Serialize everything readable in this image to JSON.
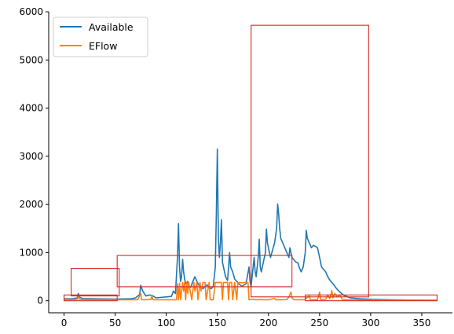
{
  "chart_data": {
    "type": "line",
    "title": "",
    "xlabel": "",
    "ylabel": "",
    "xlim": [
      -15,
      380
    ],
    "ylim": [
      -250,
      6000
    ],
    "x_ticks": [
      0,
      50,
      100,
      150,
      200,
      250,
      300,
      350
    ],
    "y_ticks": [
      0,
      1000,
      2000,
      3000,
      4000,
      5000,
      6000
    ],
    "grid": false,
    "legend": {
      "position": "top-left",
      "entries": [
        "Available",
        "EFlow"
      ]
    },
    "series": [
      {
        "name": "Available",
        "color": "#1f77b4",
        "points": [
          [
            0,
            40
          ],
          [
            8,
            40
          ],
          [
            13,
            60
          ],
          [
            14,
            150
          ],
          [
            15,
            80
          ],
          [
            18,
            45
          ],
          [
            30,
            40
          ],
          [
            50,
            35
          ],
          [
            65,
            40
          ],
          [
            70,
            60
          ],
          [
            74,
            130
          ],
          [
            75,
            320
          ],
          [
            77,
            200
          ],
          [
            80,
            100
          ],
          [
            84,
            120
          ],
          [
            87,
            100
          ],
          [
            90,
            60
          ],
          [
            95,
            70
          ],
          [
            100,
            80
          ],
          [
            105,
            90
          ],
          [
            107,
            200
          ],
          [
            109,
            150
          ],
          [
            111,
            900
          ],
          [
            112,
            1600
          ],
          [
            113,
            700
          ],
          [
            114,
            400
          ],
          [
            115,
            500
          ],
          [
            116,
            860
          ],
          [
            117,
            600
          ],
          [
            118,
            450
          ],
          [
            119,
            350
          ],
          [
            121,
            400
          ],
          [
            122,
            300
          ],
          [
            124,
            280
          ],
          [
            126,
            400
          ],
          [
            128,
            500
          ],
          [
            130,
            400
          ],
          [
            132,
            320
          ],
          [
            134,
            280
          ],
          [
            136,
            250
          ],
          [
            138,
            300
          ],
          [
            140,
            330
          ],
          [
            142,
            280
          ],
          [
            144,
            250
          ],
          [
            146,
            300
          ],
          [
            148,
            700
          ],
          [
            149,
            1800
          ],
          [
            150,
            3150
          ],
          [
            151,
            1300
          ],
          [
            152,
            900
          ],
          [
            153,
            1200
          ],
          [
            154,
            1680
          ],
          [
            155,
            800
          ],
          [
            156,
            700
          ],
          [
            158,
            500
          ],
          [
            160,
            420
          ],
          [
            162,
            1000
          ],
          [
            163,
            700
          ],
          [
            165,
            600
          ],
          [
            167,
            450
          ],
          [
            169,
            400
          ],
          [
            171,
            350
          ],
          [
            174,
            300
          ],
          [
            178,
            350
          ],
          [
            181,
            700
          ],
          [
            182,
            400
          ],
          [
            183,
            300
          ],
          [
            185,
            700
          ],
          [
            186,
            900
          ],
          [
            187,
            600
          ],
          [
            188,
            500
          ],
          [
            189,
            700
          ],
          [
            190,
            900
          ],
          [
            191,
            1280
          ],
          [
            192,
            700
          ],
          [
            193,
            600
          ],
          [
            195,
            800
          ],
          [
            197,
            1000
          ],
          [
            198,
            1490
          ],
          [
            199,
            1200
          ],
          [
            200,
            1100
          ],
          [
            202,
            900
          ],
          [
            204,
            1050
          ],
          [
            206,
            1200
          ],
          [
            208,
            1500
          ],
          [
            209,
            2010
          ],
          [
            210,
            1800
          ],
          [
            211,
            1500
          ],
          [
            212,
            1300
          ],
          [
            214,
            1200
          ],
          [
            216,
            1100
          ],
          [
            218,
            1000
          ],
          [
            220,
            900
          ],
          [
            221,
            1100
          ],
          [
            222,
            1000
          ],
          [
            223,
            900
          ],
          [
            225,
            850
          ],
          [
            227,
            800
          ],
          [
            229,
            780
          ],
          [
            230,
            700
          ],
          [
            232,
            600
          ],
          [
            234,
            700
          ],
          [
            236,
            1000
          ],
          [
            237,
            1460
          ],
          [
            238,
            1300
          ],
          [
            240,
            1200
          ],
          [
            242,
            1100
          ],
          [
            244,
            1150
          ],
          [
            246,
            1130
          ],
          [
            248,
            1100
          ],
          [
            250,
            900
          ],
          [
            252,
            700
          ],
          [
            254,
            650
          ],
          [
            256,
            600
          ],
          [
            258,
            500
          ],
          [
            260,
            430
          ],
          [
            262,
            380
          ],
          [
            264,
            330
          ],
          [
            266,
            270
          ],
          [
            268,
            220
          ],
          [
            270,
            180
          ],
          [
            272,
            140
          ],
          [
            275,
            100
          ],
          [
            280,
            60
          ],
          [
            290,
            40
          ],
          [
            300,
            30
          ],
          [
            320,
            20
          ],
          [
            340,
            15
          ],
          [
            365,
            10
          ]
        ]
      },
      {
        "name": "EFlow",
        "color": "#ff7f0e",
        "points": [
          [
            0,
            25
          ],
          [
            10,
            25
          ],
          [
            13,
            30
          ],
          [
            14,
            100
          ],
          [
            15,
            30
          ],
          [
            18,
            25
          ],
          [
            50,
            20
          ],
          [
            72,
            20
          ],
          [
            74,
            100
          ],
          [
            75,
            150
          ],
          [
            76,
            20
          ],
          [
            85,
            25
          ],
          [
            86,
            100
          ],
          [
            87,
            20
          ],
          [
            90,
            20
          ],
          [
            110,
            20
          ],
          [
            111,
            350
          ],
          [
            112,
            20
          ],
          [
            113,
            370
          ],
          [
            114,
            20
          ],
          [
            116,
            380
          ],
          [
            117,
            200
          ],
          [
            118,
            380
          ],
          [
            119,
            20
          ],
          [
            120,
            370
          ],
          [
            121,
            150
          ],
          [
            122,
            380
          ],
          [
            123,
            250
          ],
          [
            125,
            20
          ],
          [
            127,
            380
          ],
          [
            128,
            200
          ],
          [
            130,
            380
          ],
          [
            131,
            20
          ],
          [
            133,
            380
          ],
          [
            134,
            200
          ],
          [
            136,
            380
          ],
          [
            138,
            380
          ],
          [
            139,
            20
          ],
          [
            142,
            380
          ],
          [
            143,
            20
          ],
          [
            146,
            20
          ],
          [
            148,
            380
          ],
          [
            150,
            380
          ],
          [
            154,
            380
          ],
          [
            155,
            20
          ],
          [
            156,
            380
          ],
          [
            160,
            380
          ],
          [
            161,
            20
          ],
          [
            162,
            380
          ],
          [
            164,
            380
          ],
          [
            165,
            20
          ],
          [
            167,
            380
          ],
          [
            169,
            20
          ],
          [
            170,
            370
          ],
          [
            172,
            380
          ],
          [
            174,
            370
          ],
          [
            176,
            380
          ],
          [
            178,
            380
          ],
          [
            180,
            370
          ],
          [
            181,
            20
          ],
          [
            184,
            30
          ],
          [
            188,
            20
          ],
          [
            192,
            25
          ],
          [
            196,
            20
          ],
          [
            200,
            20
          ],
          [
            206,
            50
          ],
          [
            207,
            20
          ],
          [
            212,
            20
          ],
          [
            218,
            25
          ],
          [
            220,
            80
          ],
          [
            222,
            180
          ],
          [
            223,
            60
          ],
          [
            225,
            20
          ],
          [
            235,
            20
          ],
          [
            240,
            100
          ],
          [
            241,
            20
          ],
          [
            248,
            20
          ],
          [
            250,
            180
          ],
          [
            251,
            20
          ],
          [
            256,
            30
          ],
          [
            258,
            120
          ],
          [
            260,
            40
          ],
          [
            262,
            210
          ],
          [
            263,
            60
          ],
          [
            265,
            150
          ],
          [
            267,
            80
          ],
          [
            270,
            120
          ],
          [
            272,
            30
          ],
          [
            276,
            20
          ],
          [
            300,
            15
          ],
          [
            330,
            12
          ],
          [
            365,
            10
          ]
        ]
      }
    ],
    "annotation_rects": [
      {
        "x0": 0,
        "x1": 52,
        "y0": 0,
        "y1": 120
      },
      {
        "x0": 7,
        "x1": 54,
        "y0": 100,
        "y1": 670
      },
      {
        "x0": 52,
        "x1": 223,
        "y0": 290,
        "y1": 940
      },
      {
        "x0": 183,
        "x1": 298,
        "y0": 80,
        "y1": 5720
      },
      {
        "x0": 236,
        "x1": 365,
        "y0": 0,
        "y1": 120
      }
    ],
    "annotation_color": "#d62728"
  }
}
